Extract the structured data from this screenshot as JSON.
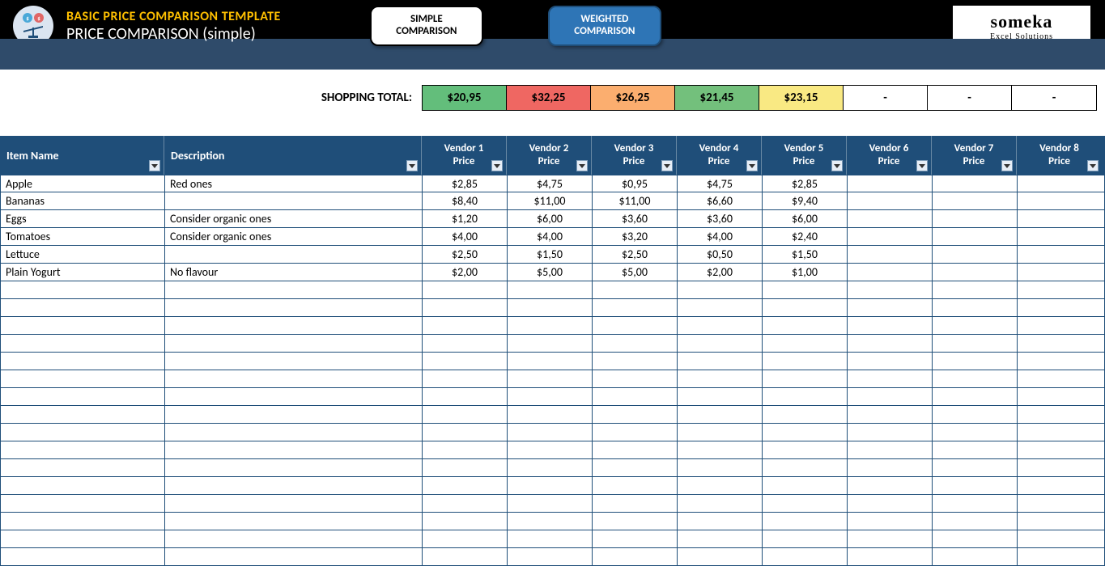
{
  "header": {
    "template_title": "BASIC PRICE COMPARISON TEMPLATE",
    "page_title": "PRICE COMPARISON",
    "page_title_suffix": "(simple)"
  },
  "tabs": {
    "simple_line1": "SIMPLE",
    "simple_line2": "COMPARISON",
    "simple_bg": "#ffffff",
    "simple_fg": "#000000",
    "weighted_line1": "WEIGHTED",
    "weighted_line2": "COMPARISON",
    "weighted_bg": "#2e75b6",
    "weighted_fg": "#ffffff"
  },
  "logo": {
    "name": "someka",
    "tagline": "Excel Solutions"
  },
  "totals": {
    "label": "SHOPPING TOTAL:",
    "cells": [
      {
        "value": "$20,95",
        "bg": "#63be7b"
      },
      {
        "value": "$32,25",
        "bg": "#ef6762"
      },
      {
        "value": "$26,25",
        "bg": "#fbae6f"
      },
      {
        "value": "$21,45",
        "bg": "#73c07c"
      },
      {
        "value": "$23,15",
        "bg": "#f9e983"
      },
      {
        "value": "-",
        "bg": "#ffffff"
      },
      {
        "value": "-",
        "bg": "#ffffff"
      },
      {
        "value": "-",
        "bg": "#ffffff"
      }
    ]
  },
  "columns": {
    "item": "Item Name",
    "desc": "Description",
    "vendors": [
      {
        "line1": "Vendor 1",
        "line2": "Price"
      },
      {
        "line1": "Vendor 2",
        "line2": "Price"
      },
      {
        "line1": "Vendor 3",
        "line2": "Price"
      },
      {
        "line1": "Vendor 4",
        "line2": "Price"
      },
      {
        "line1": "Vendor 5",
        "line2": "Price"
      },
      {
        "line1": "Vendor 6",
        "line2": "Price"
      },
      {
        "line1": "Vendor 7",
        "line2": "Price"
      },
      {
        "line1": "Vendor 8",
        "line2": "Price"
      }
    ]
  },
  "rows": [
    {
      "item": "Apple",
      "desc": "Red ones",
      "prices": [
        "$2,85",
        "$4,75",
        "$0,95",
        "$4,75",
        "$2,85",
        "",
        "",
        ""
      ]
    },
    {
      "item": "Bananas",
      "desc": "",
      "prices": [
        "$8,40",
        "$11,00",
        "$11,00",
        "$6,60",
        "$9,40",
        "",
        "",
        ""
      ]
    },
    {
      "item": "Eggs",
      "desc": "Consider organic ones",
      "prices": [
        "$1,20",
        "$6,00",
        "$3,60",
        "$3,60",
        "$6,00",
        "",
        "",
        ""
      ]
    },
    {
      "item": "Tomatoes",
      "desc": "Consider organic ones",
      "prices": [
        "$4,00",
        "$4,00",
        "$3,20",
        "$4,00",
        "$2,40",
        "",
        "",
        ""
      ]
    },
    {
      "item": "Lettuce",
      "desc": "",
      "prices": [
        "$2,50",
        "$1,50",
        "$2,50",
        "$0,50",
        "$1,50",
        "",
        "",
        ""
      ]
    },
    {
      "item": "Plain Yogurt",
      "desc": "No flavour",
      "prices": [
        "$2,00",
        "$5,00",
        "$5,00",
        "$2,00",
        "$1,00",
        "",
        "",
        ""
      ]
    }
  ],
  "empty_row_count": 16,
  "colors": {
    "header_bg": "#1f4e79",
    "grid_line": "#1f4e79"
  }
}
